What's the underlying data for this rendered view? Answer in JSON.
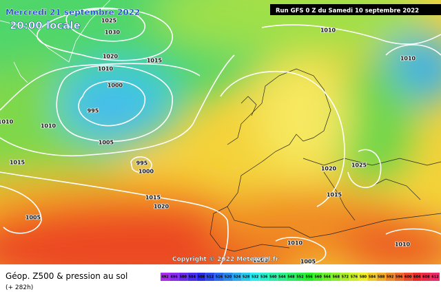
{
  "header": {
    "date": "Mercredi 21 septembre 2022",
    "time": "20:00 locale",
    "run": "Run GFS 0 Z du Samedi 10 septembre 2022"
  },
  "copyright": "Copyright © 2022 Meteociel.fr",
  "isobar_labels": [
    1025,
    1030,
    1020,
    1010,
    1015,
    1000,
    995,
    1010,
    1010,
    1005,
    1015,
    995,
    1000,
    1015,
    1020,
    1005,
    1010,
    1010,
    1020,
    1025,
    1015,
    1010,
    1005,
    1005,
    1010
  ],
  "footer": {
    "title": "Géop. Z500 & pression au sol",
    "lead": "(+ 282h)"
  },
  "legend": {
    "labels": [
      492,
      496,
      500,
      504,
      508,
      512,
      516,
      520,
      524,
      528,
      532,
      536,
      540,
      544,
      548,
      552,
      556,
      560,
      564,
      568,
      572,
      576,
      580,
      584,
      588,
      592,
      596,
      600,
      604,
      608,
      612
    ]
  }
}
